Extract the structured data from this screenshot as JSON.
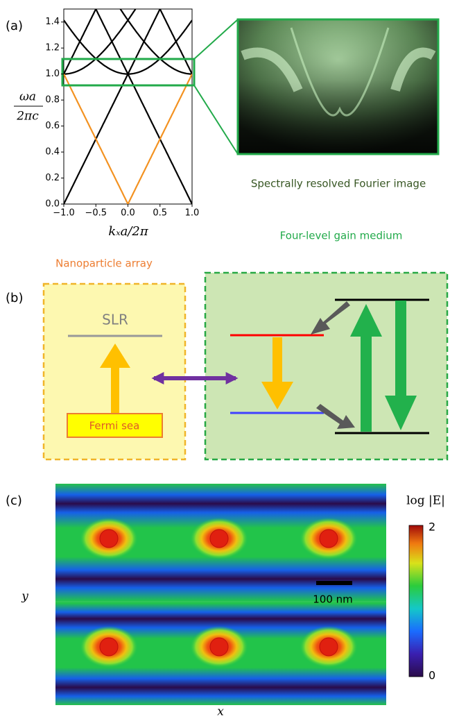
{
  "panel_labels": [
    "(a)",
    "(b)",
    "(c)"
  ],
  "panel_a": {
    "y_label_numerator": "ωa",
    "y_label_denominator": "2πc",
    "x_label": "kₓa/2π",
    "xlim": [
      -1,
      1
    ],
    "ylim": [
      0,
      1.5
    ],
    "xticks": [
      {
        "value": -1,
        "label": "−1.0"
      },
      {
        "value": -0.5,
        "label": "−0.5"
      },
      {
        "value": 0,
        "label": "0.0"
      },
      {
        "value": 0.5,
        "label": "0.5"
      },
      {
        "value": 1,
        "label": "1.0"
      }
    ],
    "yticks": [
      {
        "value": 0,
        "label": "0.0"
      },
      {
        "value": 0.2,
        "label": "0.2"
      },
      {
        "value": 0.4,
        "label": "0.4"
      },
      {
        "value": 0.6,
        "label": "0.6"
      },
      {
        "value": 0.8,
        "label": "0.8"
      },
      {
        "value": 1,
        "label": "1.0"
      },
      {
        "value": 1.2,
        "label": "1.2"
      },
      {
        "value": 1.4,
        "label": "1.4"
      }
    ],
    "image_caption": "Spectrally resolved Fourier image"
  },
  "panel_b": {
    "left_title": "Nanoparticle array",
    "right_title": "Four-level gain medium",
    "slr": "SLR",
    "fermi_sea": "Fermi sea"
  },
  "panel_c": {
    "colorbar_title": "log |E|",
    "colorbar_max": 2,
    "colorbar_min": 0,
    "scale_bar": "100 nm",
    "x_label": "x",
    "y_label": "y"
  }
}
